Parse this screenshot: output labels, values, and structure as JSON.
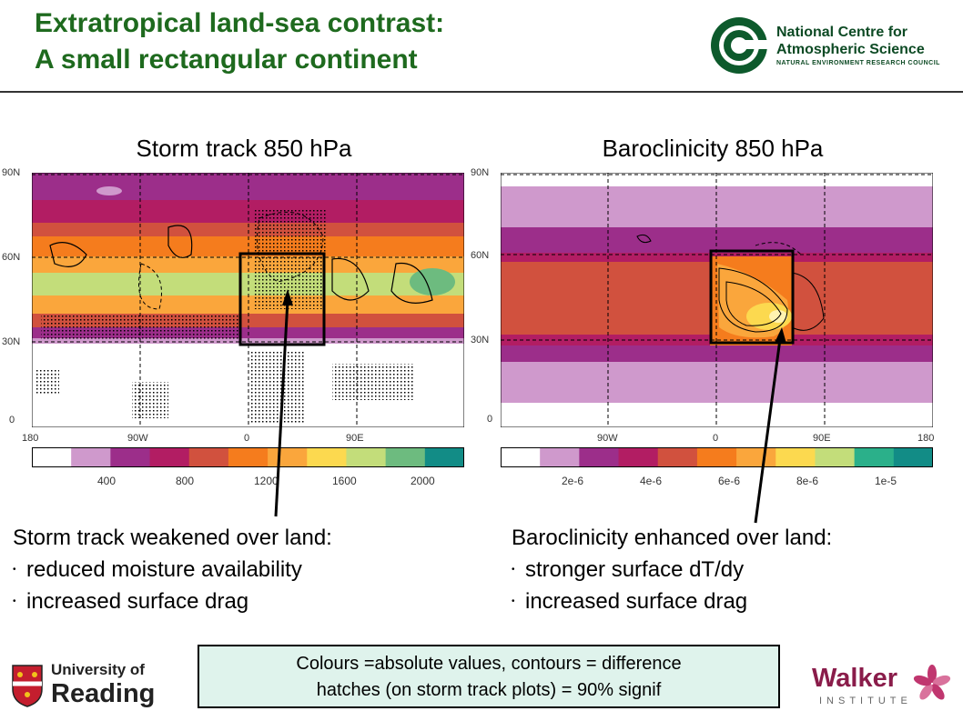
{
  "header": {
    "title_line1": "Extratropical land-sea contrast:",
    "title_line2": "A small rectangular continent"
  },
  "logos": {
    "ncas_line1": "National Centre for",
    "ncas_line2": "Atmospheric Science",
    "ncas_line3": "NATURAL ENVIRONMENT RESEARCH COUNCIL",
    "reading_line1": "University of",
    "reading_line2": "Reading",
    "walker_line1": "Walker",
    "walker_line2": "INSTITUTE"
  },
  "left_plot": {
    "title": "Storm track 850 hPa",
    "lat_ticks": [
      "90N",
      "60N",
      "30N",
      "0"
    ],
    "lon_ticks": [
      "180",
      "90W",
      "0",
      "90E"
    ],
    "colorbar_labels": [
      "400",
      "800",
      "1200",
      "1600",
      "2000"
    ],
    "colors": [
      "#ffffff",
      "#cf99cc",
      "#9c2e8a",
      "#b21d63",
      "#d1513e",
      "#f57c1d",
      "#faa63c",
      "#fcd94f",
      "#c3dd7a",
      "#6dbb7f",
      "#128c86"
    ]
  },
  "right_plot": {
    "title": "Baroclinicity 850 hPa",
    "lat_ticks": [
      "90N",
      "60N",
      "30N",
      "0"
    ],
    "lon_ticks": [
      "90W",
      "0",
      "90E",
      "180"
    ],
    "colorbar_labels": [
      "2e-6",
      "4e-6",
      "6e-6",
      "8e-6",
      "1e-5"
    ],
    "colors": [
      "#ffffff",
      "#cf99cc",
      "#9c2e8a",
      "#b21d63",
      "#d1513e",
      "#f57c1d",
      "#faa63c",
      "#fcd94f",
      "#c3dd7a",
      "#2bb08a",
      "#128c86"
    ]
  },
  "left_caption": {
    "head": "Storm track weakened over land:",
    "bullets": [
      "reduced moisture availability",
      "increased surface drag"
    ]
  },
  "right_caption": {
    "head": "Baroclinicity enhanced over land:",
    "bullets": [
      "stronger surface dT/dy",
      "increased surface drag"
    ]
  },
  "note": {
    "line1": "Colours =absolute values, contours = difference",
    "line2": "hatches (on storm track plots) = 90% signif"
  }
}
